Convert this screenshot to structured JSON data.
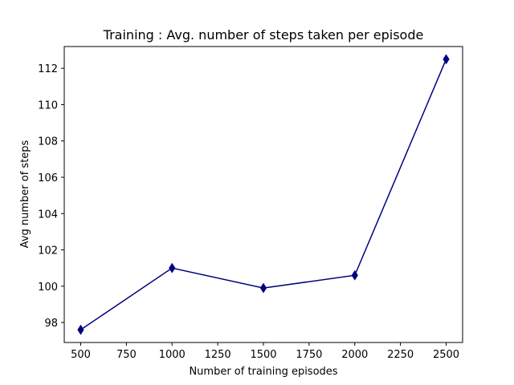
{
  "chart_data": {
    "type": "line",
    "title": "Training : Avg. number of steps taken per episode",
    "xlabel": "Number of training episodes",
    "ylabel": "Avg number of steps",
    "x": [
      500,
      1000,
      1500,
      2000,
      2500
    ],
    "series": [
      {
        "values": [
          97.6,
          101.0,
          99.9,
          100.6,
          112.5
        ],
        "color": "#000080",
        "marker": "thin-diamond"
      }
    ],
    "xlim": [
      410,
      2590
    ],
    "ylim": [
      96.9,
      113.2
    ],
    "xticks": [
      500,
      750,
      1000,
      1250,
      1500,
      1750,
      2000,
      2250,
      2500
    ],
    "yticks": [
      98,
      100,
      102,
      104,
      106,
      108,
      110,
      112
    ],
    "grid": false,
    "legend": "none"
  }
}
